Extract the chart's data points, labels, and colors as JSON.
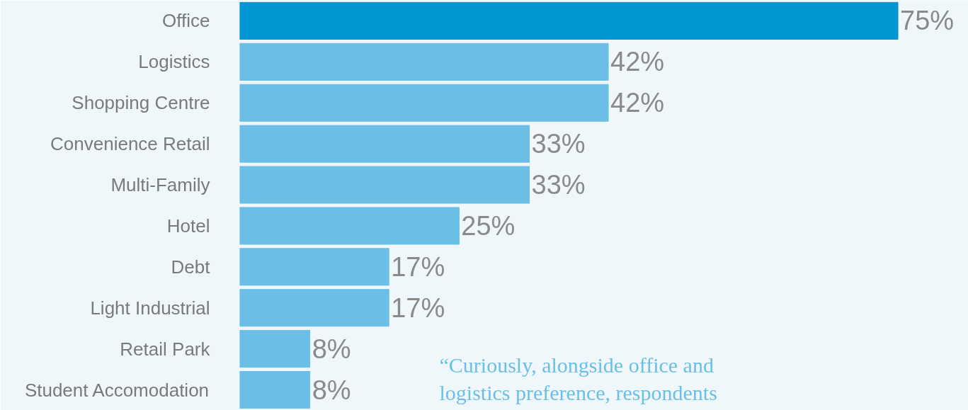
{
  "chart_data": {
    "type": "bar",
    "orientation": "horizontal",
    "categories": [
      "Office",
      "Logistics",
      "Shopping Centre",
      "Convenience Retail",
      "Multi-Family",
      "Hotel",
      "Debt",
      "Light Industrial",
      "Retail Park",
      "Student Accomodation"
    ],
    "values": [
      75,
      42,
      42,
      33,
      33,
      25,
      17,
      17,
      8,
      8
    ],
    "colors": [
      "#0095d3",
      "#6bbfe6",
      "#6bbfe6",
      "#6bbfe6",
      "#6bbfe6",
      "#6bbfe6",
      "#6bbfe6",
      "#6bbfe6",
      "#6bbfe6",
      "#6bbfe6"
    ],
    "value_labels": [
      "75%",
      "42%",
      "42%",
      "33%",
      "33%",
      "25%",
      "17%",
      "17%",
      "8%",
      "8%"
    ],
    "annotations": [
      "“Curiously, alongside office and logistics preference, respondents"
    ],
    "grid": false
  }
}
